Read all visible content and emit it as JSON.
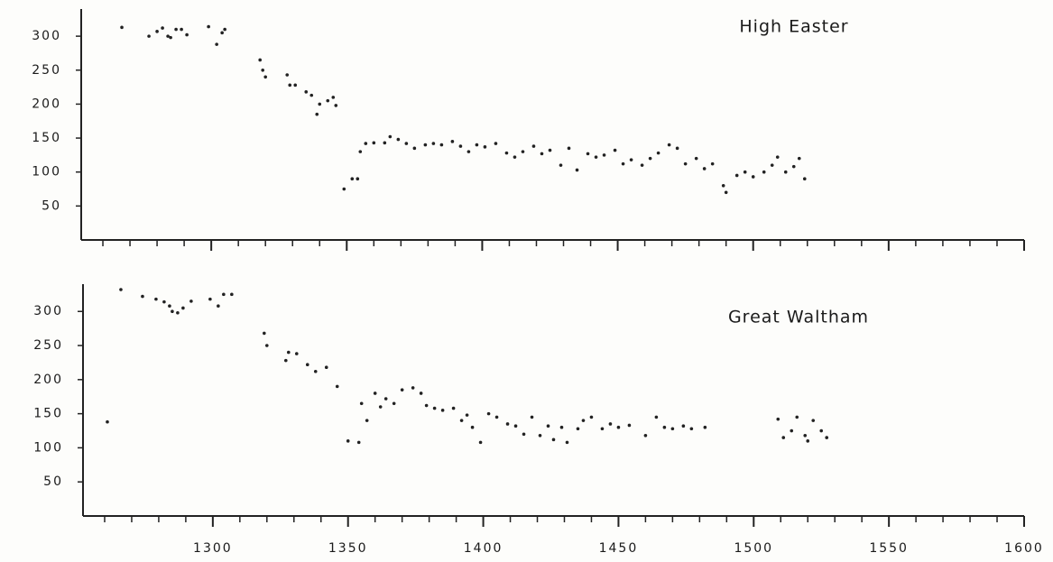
{
  "chart_data": [
    {
      "type": "scatter",
      "title": "High Easter",
      "color": "#222222",
      "x": [
        1267,
        1277,
        1280,
        1282,
        1284,
        1285,
        1287,
        1289,
        1291,
        1299,
        1302,
        1304,
        1305,
        1318,
        1319,
        1320,
        1328,
        1329,
        1331,
        1335,
        1337,
        1339,
        1340,
        1343,
        1345,
        1346,
        1349,
        1352,
        1354,
        1355,
        1357,
        1360,
        1364,
        1366,
        1369,
        1372,
        1375,
        1379,
        1382,
        1385,
        1389,
        1392,
        1395,
        1398,
        1401,
        1405,
        1409,
        1412,
        1415,
        1419,
        1422,
        1425,
        1429,
        1432,
        1435,
        1439,
        1442,
        1445,
        1449,
        1452,
        1455,
        1459,
        1462,
        1465,
        1469,
        1472,
        1475,
        1479,
        1482,
        1485,
        1489,
        1490,
        1494,
        1497,
        1500,
        1504,
        1507,
        1509,
        1512,
        1515,
        1517,
        1519
      ],
      "values": [
        313,
        300,
        307,
        312,
        300,
        298,
        310,
        310,
        302,
        314,
        288,
        305,
        310,
        265,
        250,
        240,
        243,
        228,
        228,
        218,
        213,
        185,
        200,
        205,
        210,
        198,
        75,
        90,
        90,
        130,
        142,
        143,
        143,
        152,
        148,
        142,
        135,
        140,
        142,
        140,
        145,
        138,
        130,
        140,
        137,
        142,
        128,
        122,
        130,
        138,
        127,
        132,
        110,
        135,
        103,
        127,
        122,
        125,
        132,
        112,
        118,
        110,
        120,
        128,
        140,
        135,
        112,
        120,
        105,
        112,
        80,
        70,
        95,
        100,
        93,
        100,
        110,
        122,
        100,
        108,
        120,
        90
      ],
      "xlim": [
        1252,
        1600
      ],
      "ylim": [
        0,
        340
      ],
      "yticks": [
        50,
        100,
        150,
        200,
        250,
        300
      ],
      "xticks": [
        1300,
        1350,
        1400,
        1450,
        1500,
        1550,
        1600
      ],
      "xtick_labels": false
    },
    {
      "type": "scatter",
      "title": "Great Waltham",
      "color": "#222222",
      "x": [
        1261,
        1266,
        1274,
        1279,
        1282,
        1284,
        1285,
        1287,
        1289,
        1292,
        1299,
        1302,
        1304,
        1307,
        1319,
        1320,
        1327,
        1328,
        1331,
        1335,
        1338,
        1342,
        1346,
        1350,
        1354,
        1355,
        1357,
        1360,
        1362,
        1364,
        1367,
        1370,
        1374,
        1377,
        1379,
        1382,
        1385,
        1389,
        1392,
        1394,
        1396,
        1399,
        1402,
        1405,
        1409,
        1412,
        1415,
        1418,
        1421,
        1424,
        1426,
        1429,
        1431,
        1435,
        1437,
        1440,
        1444,
        1447,
        1450,
        1454,
        1460,
        1464,
        1467,
        1470,
        1474,
        1477,
        1482,
        1509,
        1511,
        1514,
        1516,
        1519,
        1520,
        1522,
        1525,
        1527
      ],
      "values": [
        138,
        332,
        322,
        318,
        314,
        308,
        300,
        298,
        305,
        315,
        318,
        308,
        325,
        325,
        268,
        250,
        228,
        240,
        238,
        222,
        212,
        218,
        190,
        110,
        108,
        165,
        140,
        180,
        160,
        172,
        165,
        185,
        188,
        180,
        162,
        158,
        155,
        158,
        140,
        148,
        130,
        108,
        150,
        145,
        135,
        132,
        120,
        145,
        118,
        132,
        112,
        130,
        108,
        128,
        140,
        145,
        128,
        135,
        130,
        133,
        118,
        145,
        130,
        128,
        132,
        128,
        130,
        142,
        115,
        125,
        145,
        118,
        110,
        140,
        125,
        115
      ],
      "xlim": [
        1252,
        1600
      ],
      "ylim": [
        0,
        340
      ],
      "yticks": [
        50,
        100,
        150,
        200,
        250,
        300
      ],
      "xticks": [
        1300,
        1350,
        1400,
        1450,
        1500,
        1550,
        1600
      ],
      "xtick_labels": true
    }
  ]
}
